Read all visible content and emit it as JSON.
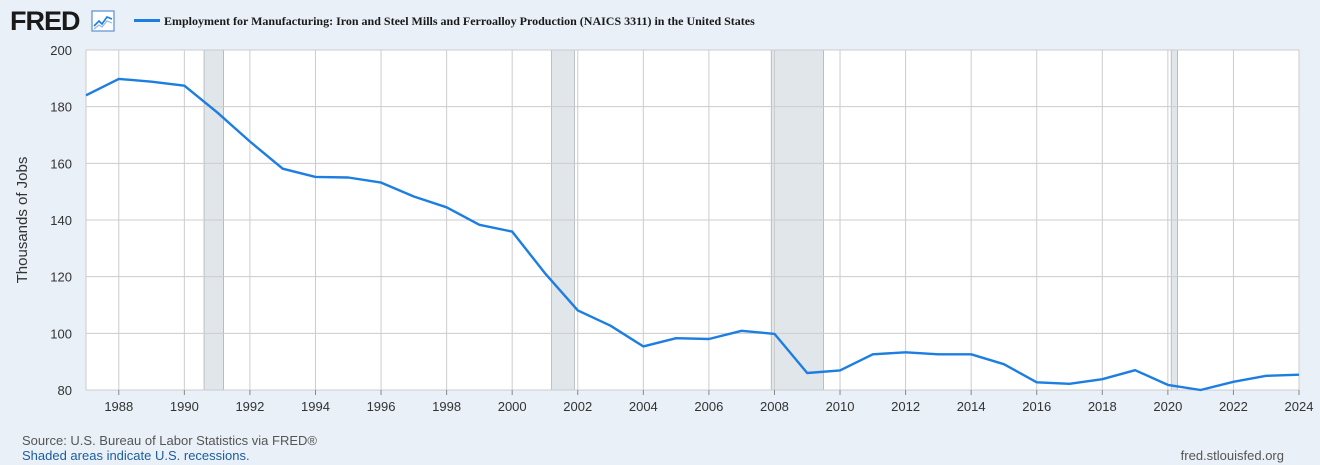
{
  "header": {
    "logo_text": "FRED",
    "logo_icon": "line-chart-icon",
    "series_title": "Employment for Manufacturing: Iron and Steel Mills and Ferroalloy Production (NAICS 3311) in the United States"
  },
  "footer": {
    "source": "Source: U.S. Bureau of Labor Statistics via FRED®",
    "recession_note": "Shaded areas indicate U.S. recessions.",
    "site": "fred.stlouisfed.org"
  },
  "colors": {
    "series": "#1c7ee0",
    "recession": "#e1e6ea",
    "grid": "#cccccc",
    "plot_bg": "#ffffff",
    "page_bg": "#e9f0f8"
  },
  "chart_data": {
    "type": "line",
    "ylabel": "Thousands of Jobs",
    "xlim": [
      1987,
      2024
    ],
    "ylim": [
      80,
      200
    ],
    "yticks": [
      80,
      100,
      120,
      140,
      160,
      180,
      200
    ],
    "xticks": [
      1988,
      1990,
      1992,
      1994,
      1996,
      1998,
      2000,
      2002,
      2004,
      2006,
      2008,
      2010,
      2012,
      2014,
      2016,
      2018,
      2020,
      2022,
      2024
    ],
    "grid": true,
    "recessions": [
      [
        1990.6,
        1991.2
      ],
      [
        2001.2,
        2001.9
      ],
      [
        2007.9,
        2009.5
      ],
      [
        2020.1,
        2020.3
      ]
    ],
    "series": [
      {
        "name": "Employment for Manufacturing: Iron and Steel Mills and Ferroalloy Production (NAICS 3311) in the United States",
        "x": [
          1987,
          1988,
          1989,
          1990,
          1991,
          1992,
          1993,
          1994,
          1995,
          1996,
          1997,
          1998,
          1999,
          2000,
          2001,
          2002,
          2003,
          2004,
          2005,
          2006,
          2007,
          2008,
          2009,
          2010,
          2011,
          2012,
          2013,
          2014,
          2015,
          2016,
          2017,
          2018,
          2019,
          2020,
          2021,
          2022,
          2023,
          2024
        ],
        "values": [
          184.0,
          189.8,
          188.8,
          187.4,
          178.0,
          167.7,
          158.1,
          155.2,
          155.0,
          153.2,
          148.3,
          144.5,
          138.3,
          135.9,
          121.2,
          108.1,
          102.7,
          95.4,
          98.3,
          98.0,
          100.9,
          99.8,
          86.0,
          86.9,
          92.6,
          93.3,
          92.6,
          92.6,
          89.1,
          82.7,
          82.2,
          83.8,
          87.0,
          81.8,
          80.0,
          82.9,
          85.0,
          85.4
        ]
      }
    ]
  }
}
